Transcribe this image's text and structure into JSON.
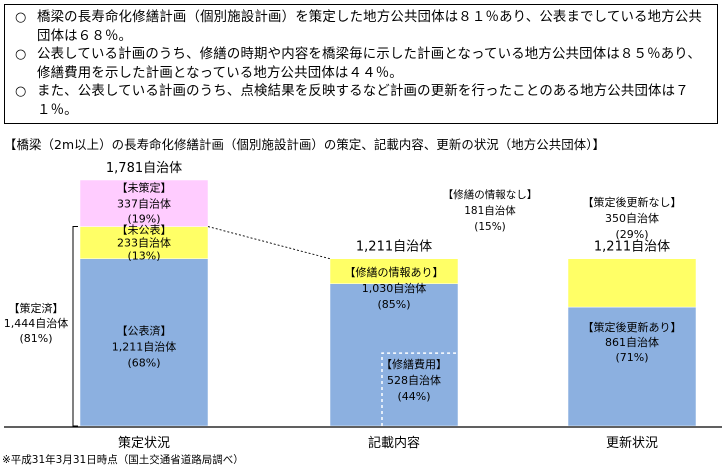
{
  "summary": {
    "bullet_mark": "○",
    "items": [
      "橋梁の長寿命化修繕計画（個別施設計画）を策定した地方公共団体は８１％あり、公表までしている地方公共団体は６８％。",
      "公表している計画のうち、修繕の時期や内容を橋梁毎に示した計画となっている地方公共団体は８５％あり、修繕費用を示した計画となっている地方公共団体は４４％。",
      "また、公表している計画のうち、点検結果を反映するなど計画の更新を行ったことのある地方公共団体は７１％。"
    ]
  },
  "chart_title": "【橋梁（2m以上）の長寿命化修繕計画（個別施設計画）の策定、記載内容、更新の状況（地方公共団体）】",
  "footnote": "※平成31年3月31日時点（国土交通省道路局調べ）",
  "chart_data": {
    "type": "bar",
    "stacked": true,
    "unit": "自治体",
    "colors": {
      "blue": "#8cb0e0",
      "yellow": "#ffff66",
      "pink": "#ffccff"
    },
    "categories": [
      "策定状況",
      "記載内容",
      "更新状況"
    ],
    "totals": [
      "1,781自治体",
      "1,211自治体",
      "1,211自治体"
    ],
    "bars": [
      {
        "category": "策定状況",
        "total": 1781,
        "segments": [
          {
            "label": "【公表済】",
            "value": 1211,
            "count": "1,211自治体",
            "pct": "(68%)",
            "color": "blue"
          },
          {
            "label": "【未公表】",
            "value": 233,
            "count": "233自治体",
            "pct": "(13%)",
            "color": "yellow"
          },
          {
            "label": "【未策定】",
            "value": 337,
            "count": "337自治体",
            "pct": "(19%)",
            "color": "pink"
          }
        ]
      },
      {
        "category": "記載内容",
        "total": 1211,
        "segments": [
          {
            "label": "【修繕の情報あり】",
            "value": 1030,
            "count": "1,030自治体",
            "pct": "(85%)",
            "color": "blue"
          },
          {
            "label": "【修繕の情報なし】",
            "value": 181,
            "count": "181自治体",
            "pct": "(15%)",
            "color": "yellow"
          }
        ],
        "sub_segment": {
          "label": "【修繕費用】",
          "value": 528,
          "count": "528自治体",
          "pct": "(44%)"
        }
      },
      {
        "category": "更新状況",
        "total": 1211,
        "segments": [
          {
            "label": "【策定後更新あり】",
            "value": 861,
            "count": "861自治体",
            "pct": "(71%)",
            "color": "blue"
          },
          {
            "label": "【策定後更新なし】",
            "value": 350,
            "count": "350自治体",
            "pct": "(29%)",
            "color": "yellow"
          }
        ]
      }
    ],
    "bracket": {
      "label": "【策定済】",
      "count": "1,444自治体",
      "pct": "(81%)",
      "value": 1444
    }
  }
}
